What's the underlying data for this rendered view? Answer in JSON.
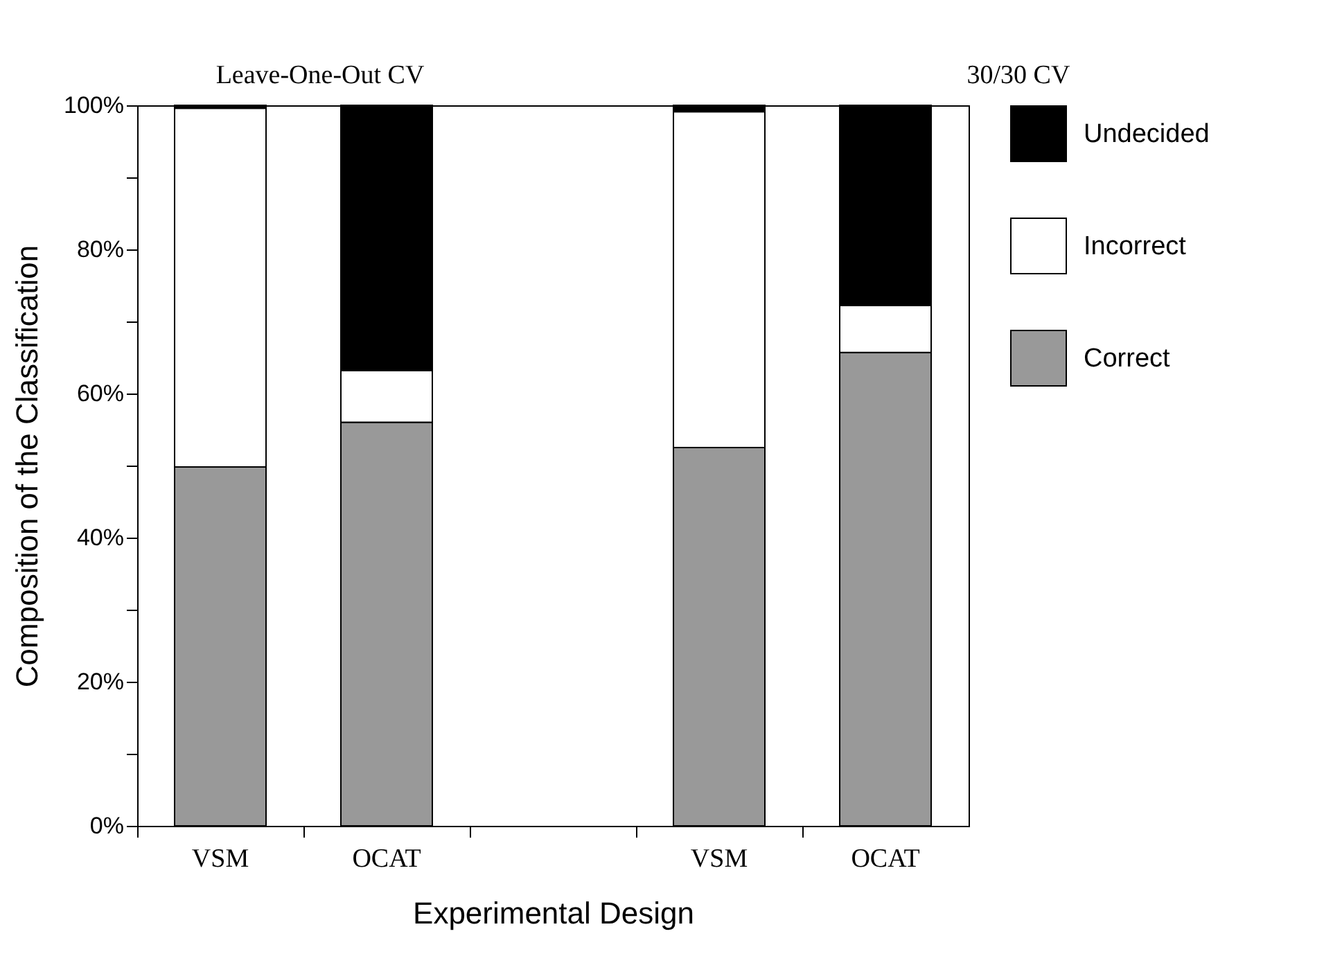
{
  "chart_data": {
    "type": "bar",
    "stacked": true,
    "xlabel": "Experimental Design",
    "ylabel": "Composition of the Classification",
    "annotations": [
      "Leave-One-Out CV",
      "30/30 CV"
    ],
    "categories": [
      "VSM",
      "OCAT",
      null,
      "VSM",
      "OCAT"
    ],
    "series": [
      {
        "name": "Correct",
        "color": "#999999",
        "values": [
          49.8,
          56.0,
          null,
          52.5,
          65.7
        ]
      },
      {
        "name": "Incorrect",
        "color": "#ffffff",
        "values": [
          49.8,
          7.2,
          null,
          46.6,
          6.5
        ]
      },
      {
        "name": "Undecided",
        "color": "#000000",
        "values": [
          0.4,
          36.8,
          null,
          0.9,
          27.8
        ]
      }
    ],
    "ylim": [
      0,
      100
    ],
    "yticks": [
      {
        "value": 0,
        "label": "0%"
      },
      {
        "value": 10,
        "label": null
      },
      {
        "value": 20,
        "label": "20%"
      },
      {
        "value": 30,
        "label": null
      },
      {
        "value": 40,
        "label": "40%"
      },
      {
        "value": 50,
        "label": null
      },
      {
        "value": 60,
        "label": "60%"
      },
      {
        "value": 70,
        "label": null
      },
      {
        "value": 80,
        "label": "80%"
      },
      {
        "value": 90,
        "label": null
      },
      {
        "value": 100,
        "label": "100%"
      }
    ],
    "grid": false,
    "legend": "right"
  }
}
